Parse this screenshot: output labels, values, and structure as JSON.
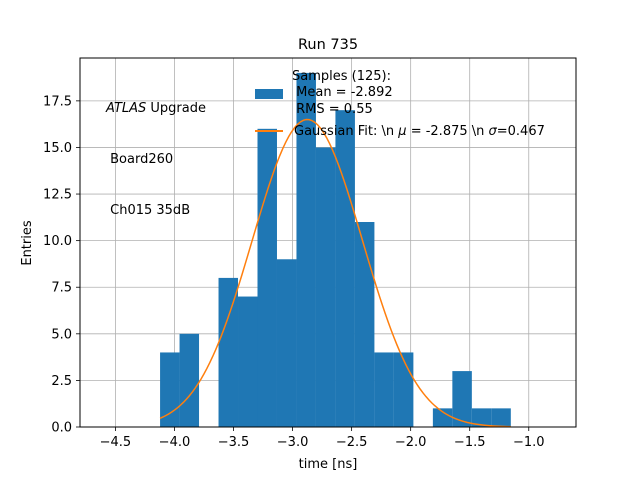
{
  "chart_data": {
    "type": "bar",
    "title": "Run 735",
    "xlabel": "time [ns]",
    "ylabel": "Entries",
    "xlim": [
      -4.8,
      -0.6
    ],
    "ylim": [
      0,
      19.8
    ],
    "xticks": [
      -4.5,
      -4.0,
      -3.5,
      -3.0,
      -2.5,
      -2.0,
      -1.5,
      -1.0
    ],
    "xtick_labels": [
      "−4.5",
      "−4.0",
      "−3.5",
      "−3.0",
      "−2.5",
      "−2.0",
      "−1.5",
      "−1.0"
    ],
    "yticks": [
      0.0,
      2.5,
      5.0,
      7.5,
      10.0,
      12.5,
      15.0,
      17.5
    ],
    "ytick_labels": [
      "0.0",
      "2.5",
      "5.0",
      "7.5",
      "10.0",
      "12.5",
      "15.0",
      "17.5"
    ],
    "grid": true,
    "bin_edges": [
      -4.122,
      -3.957,
      -3.792,
      -3.627,
      -3.462,
      -3.297,
      -3.132,
      -2.967,
      -2.802,
      -2.637,
      -2.472,
      -2.307,
      -2.142,
      -1.977,
      -1.812,
      -1.647,
      -1.482,
      -1.317,
      -1.152
    ],
    "counts": [
      4,
      5,
      0,
      8,
      7,
      16,
      9,
      19,
      15,
      17,
      11,
      4,
      4,
      0,
      1,
      3,
      1,
      1
    ],
    "histogram_color": "#1f77b4",
    "fit": {
      "type": "gaussian",
      "amplitude": 16.5,
      "mu": -2.875,
      "sigma": 0.467,
      "x_range": [
        -4.122,
        -1.152
      ],
      "color": "#ff7f0e"
    },
    "annotation": {
      "italic": "ATLAS",
      "line1_rest": " Upgrade",
      "line2": " Board260",
      "line3": " Ch015 35dB"
    },
    "legend": {
      "placement": "top-center",
      "samples_line1": "Samples (125):",
      "samples_line2": " Mean = -2.892",
      "samples_line3": " RMS = 0.55",
      "fit_prefix": "Gaussian Fit: \\n ",
      "fit_mu": " = -2.875 \\n ",
      "fit_sigma": "=0.467"
    }
  }
}
